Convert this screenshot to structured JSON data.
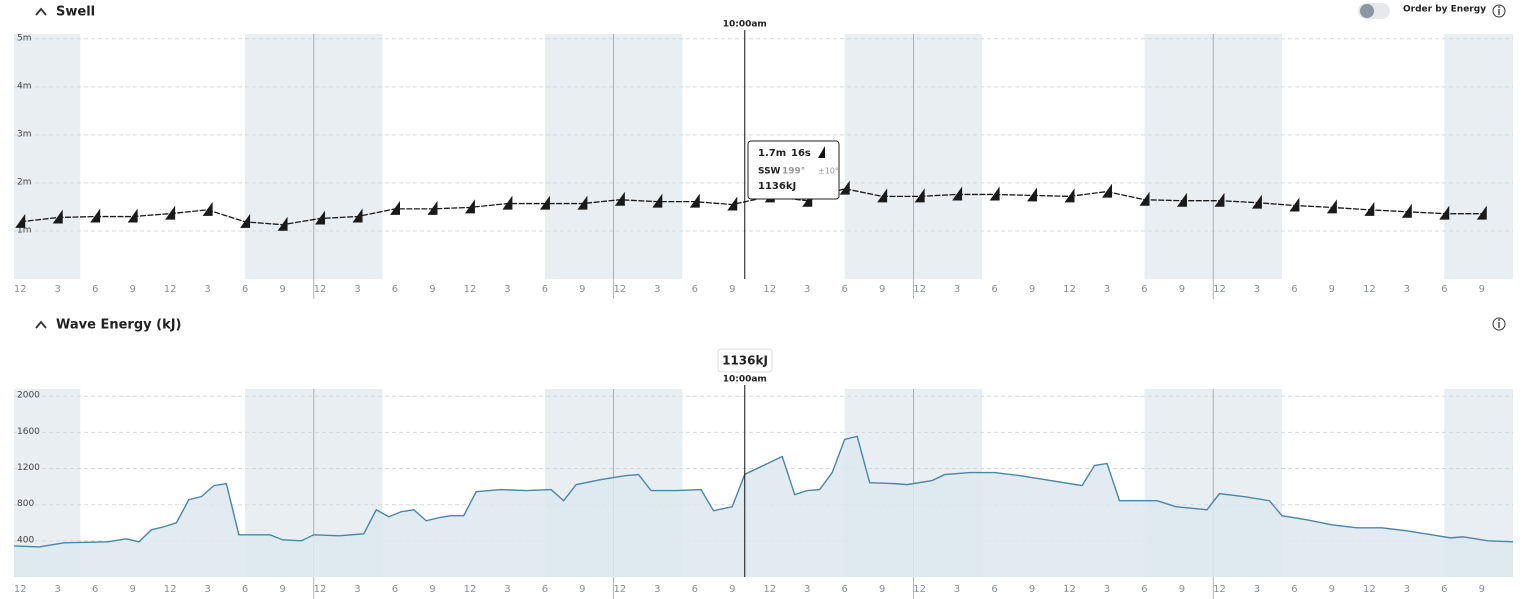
{
  "ui": {
    "toggle_label": "Order by Energy",
    "tooltip": {
      "height": "1.7m",
      "period": "16s",
      "direction": "SSW",
      "degrees": "199°",
      "spread": "±10°"
    },
    "cursor_energy": "1136kJ"
  },
  "chart_data": [
    {
      "type": "line",
      "title": "Swell",
      "color": "#1a1a1a",
      "marker": "triangle",
      "grid": true,
      "x": [
        0,
        3,
        6,
        9,
        12,
        15,
        18,
        21,
        24,
        27,
        30,
        33,
        36,
        39,
        42,
        45,
        48,
        51,
        54,
        57,
        60,
        63,
        66,
        69,
        72,
        75,
        78,
        81,
        84,
        87,
        90,
        93,
        96,
        99,
        102,
        105,
        108,
        111,
        114,
        117
      ],
      "values": [
        1.19,
        1.28,
        1.3,
        1.3,
        1.36,
        1.44,
        1.19,
        1.13,
        1.26,
        1.3,
        1.46,
        1.46,
        1.49,
        1.57,
        1.57,
        1.57,
        1.65,
        1.61,
        1.61,
        1.55,
        1.72,
        1.63,
        1.88,
        1.72,
        1.72,
        1.76,
        1.76,
        1.74,
        1.72,
        1.82,
        1.65,
        1.63,
        1.63,
        1.59,
        1.53,
        1.49,
        1.44,
        1.4,
        1.36,
        1.36
      ],
      "xlim": [
        -0.5,
        119.5
      ],
      "ylim": [
        0,
        5.1
      ],
      "yticks": [
        {
          "value": 1,
          "label": "1m"
        },
        {
          "value": 2,
          "label": "2m"
        },
        {
          "value": 3,
          "label": "3m"
        },
        {
          "value": 4,
          "label": "4m"
        },
        {
          "value": 5,
          "label": "5m"
        }
      ],
      "xticks": [
        {
          "value": 0,
          "label": "12"
        },
        3,
        6,
        9,
        12,
        {
          "value": 15,
          "label": "3"
        },
        {
          "value": 18,
          "label": "6"
        },
        {
          "value": 21,
          "label": "9"
        },
        {
          "value": 24,
          "label": "12"
        },
        {
          "value": 27,
          "label": "3"
        },
        {
          "value": 30,
          "label": "6"
        },
        {
          "value": 33,
          "label": "9"
        },
        {
          "value": 36,
          "label": "12"
        },
        {
          "value": 39,
          "label": "3"
        },
        {
          "value": 42,
          "label": "6"
        },
        {
          "value": 45,
          "label": "9"
        },
        {
          "value": 48,
          "label": "12"
        },
        {
          "value": 51,
          "label": "3"
        },
        {
          "value": 54,
          "label": "6"
        },
        {
          "value": 57,
          "label": "9"
        },
        {
          "value": 60,
          "label": "12"
        },
        {
          "value": 63,
          "label": "3"
        },
        {
          "value": 66,
          "label": "6"
        },
        {
          "value": 69,
          "label": "9"
        },
        {
          "value": 72,
          "label": "12"
        },
        {
          "value": 75,
          "label": "3"
        },
        {
          "value": 78,
          "label": "6"
        },
        {
          "value": 81,
          "label": "9"
        },
        {
          "value": 84,
          "label": "12"
        },
        {
          "value": 87,
          "label": "3"
        },
        {
          "value": 90,
          "label": "6"
        },
        {
          "value": 93,
          "label": "9"
        },
        {
          "value": 96,
          "label": "12"
        },
        {
          "value": 99,
          "label": "3"
        },
        {
          "value": 102,
          "label": "6"
        },
        {
          "value": 105,
          "label": "9"
        },
        {
          "value": 108,
          "label": "12"
        },
        {
          "value": 111,
          "label": "3"
        },
        {
          "value": 114,
          "label": "6"
        },
        {
          "value": 117,
          "label": "9"
        }
      ],
      "shaded_ranges": [
        [
          -0.5,
          4.8
        ],
        [
          18,
          29
        ],
        [
          42,
          53
        ],
        [
          66,
          77
        ],
        [
          90,
          101
        ],
        [
          114,
          119.5
        ]
      ],
      "day_lines": [
        23.5,
        47.5,
        71.5,
        95.5
      ],
      "cursor_x": 58,
      "cursor_label": "10:00am"
    },
    {
      "type": "area",
      "title": "Wave Energy (kJ)",
      "color": "#4a86a6",
      "fill": "#dde7ee",
      "grid": true,
      "x": [
        -0.5,
        1.5,
        3.5,
        7,
        8.5,
        9.5,
        10.5,
        11.5,
        12.5,
        13.5,
        14.5,
        15.5,
        16.5,
        17.5,
        20,
        21,
        22.5,
        23.5,
        25.5,
        27.5,
        28.5,
        29.5,
        30.5,
        31.5,
        32.5,
        33.5,
        34.5,
        35.5,
        36.5,
        38.5,
        40.5,
        42.5,
        43.5,
        44.5,
        46.5,
        48.5,
        49.5,
        50.5,
        52.5,
        54.5,
        55.5,
        57,
        58,
        60,
        61,
        62,
        63,
        64,
        65,
        66,
        67,
        68,
        70,
        71,
        73,
        74,
        76,
        78,
        80,
        82,
        85,
        86,
        87,
        88,
        91,
        92.5,
        95,
        96,
        98,
        100,
        101,
        103,
        105,
        107,
        109,
        111,
        113,
        114.5,
        115.5,
        117.5,
        119.5
      ],
      "values": [
        344,
        333,
        378,
        389,
        422,
        389,
        522,
        556,
        600,
        856,
        889,
        1011,
        1033,
        467,
        467,
        411,
        400,
        467,
        456,
        478,
        744,
        667,
        722,
        744,
        622,
        656,
        678,
        678,
        944,
        967,
        956,
        967,
        844,
        1022,
        1078,
        1122,
        1133,
        956,
        956,
        967,
        733,
        778,
        1136,
        1267,
        1333,
        911,
        956,
        967,
        1156,
        1522,
        1556,
        1044,
        1033,
        1022,
        1067,
        1133,
        1156,
        1156,
        1122,
        1078,
        1011,
        1233,
        1256,
        844,
        844,
        778,
        744,
        922,
        889,
        844,
        678,
        633,
        578,
        544,
        544,
        511,
        467,
        433,
        444,
        400,
        389
      ],
      "xlim": [
        -0.5,
        119.5
      ],
      "ylim": [
        0,
        2080
      ],
      "yticks": [
        400,
        800,
        1200,
        1600,
        2000
      ],
      "xticks": [
        {
          "value": 0,
          "label": "12"
        },
        3,
        6,
        9,
        12,
        {
          "value": 15,
          "label": "3"
        },
        {
          "value": 18,
          "label": "6"
        },
        {
          "value": 21,
          "label": "9"
        },
        {
          "value": 24,
          "label": "12"
        },
        {
          "value": 27,
          "label": "3"
        },
        {
          "value": 30,
          "label": "6"
        },
        {
          "value": 33,
          "label": "9"
        },
        {
          "value": 36,
          "label": "12"
        },
        {
          "value": 39,
          "label": "3"
        },
        {
          "value": 42,
          "label": "6"
        },
        {
          "value": 45,
          "label": "9"
        },
        {
          "value": 48,
          "label": "12"
        },
        {
          "value": 51,
          "label": "3"
        },
        {
          "value": 54,
          "label": "6"
        },
        {
          "value": 57,
          "label": "9"
        },
        {
          "value": 60,
          "label": "12"
        },
        {
          "value": 63,
          "label": "3"
        },
        {
          "value": 66,
          "label": "6"
        },
        {
          "value": 69,
          "label": "9"
        },
        {
          "value": 72,
          "label": "12"
        },
        {
          "value": 75,
          "label": "3"
        },
        {
          "value": 78,
          "label": "6"
        },
        {
          "value": 81,
          "label": "9"
        },
        {
          "value": 84,
          "label": "12"
        },
        {
          "value": 87,
          "label": "3"
        },
        {
          "value": 90,
          "label": "6"
        },
        {
          "value": 93,
          "label": "9"
        },
        {
          "value": 96,
          "label": "12"
        },
        {
          "value": 99,
          "label": "3"
        },
        {
          "value": 102,
          "label": "6"
        },
        {
          "value": 105,
          "label": "9"
        },
        {
          "value": 108,
          "label": "12"
        },
        {
          "value": 111,
          "label": "3"
        },
        {
          "value": 114,
          "label": "6"
        },
        {
          "value": 117,
          "label": "9"
        }
      ],
      "shaded_ranges": [
        [
          -0.5,
          4.8
        ],
        [
          18,
          29
        ],
        [
          42,
          53
        ],
        [
          66,
          77
        ],
        [
          90,
          101
        ],
        [
          114,
          119.5
        ]
      ],
      "day_lines": [
        23.5,
        47.5,
        71.5,
        95.5
      ],
      "cursor_x": 58,
      "cursor_label": "10:00am"
    }
  ]
}
